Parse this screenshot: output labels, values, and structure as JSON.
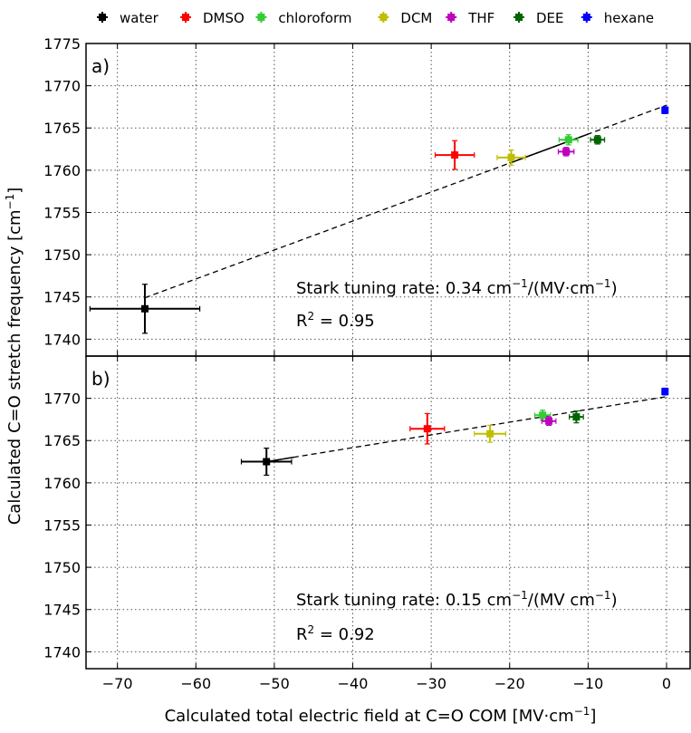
{
  "chart_data": {
    "type": "scatter",
    "legend": {
      "placement": "top",
      "entries": [
        {
          "name": "water",
          "color": "#000000"
        },
        {
          "name": "DMSO",
          "color": "#ff0000"
        },
        {
          "name": "chloroform",
          "color": "#33cc33"
        },
        {
          "name": "DCM",
          "color": "#bfbf00"
        },
        {
          "name": "THF",
          "color": "#bf00bf"
        },
        {
          "name": "DEE",
          "color": "#006400"
        },
        {
          "name": "hexane",
          "color": "#0000ff"
        }
      ]
    },
    "xlabel": "Calculated total electric field at C=O COM [MV·cm",
    "xlabel_sup": "−1",
    "xlabel_end": "]",
    "ylabel": "Calculated C=O stretch frequency [cm",
    "ylabel_sup": "−1",
    "ylabel_end": "]",
    "xlim": [
      -74,
      3
    ],
    "xticks": [
      -70,
      -60,
      -50,
      -40,
      -30,
      -20,
      -10,
      0
    ],
    "xtick_labels": [
      "−70",
      "−60",
      "−50",
      "−40",
      "−30",
      "−20",
      "−10",
      "0"
    ],
    "grid": true,
    "panels": [
      {
        "label": "a)",
        "ylim": [
          1738,
          1775
        ],
        "yticks": [
          1740,
          1745,
          1750,
          1755,
          1760,
          1765,
          1770,
          1775
        ],
        "ytick_labels": [
          "1740",
          "1745",
          "1750",
          "1755",
          "1760",
          "1765",
          "1770",
          "1775"
        ],
        "points": [
          {
            "series": "water",
            "x": -66.5,
            "y": 1743.6,
            "xerr": 7.0,
            "yerr": 2.9
          },
          {
            "series": "DMSO",
            "x": -27.0,
            "y": 1761.8,
            "xerr": 2.5,
            "yerr": 1.7
          },
          {
            "series": "chloroform",
            "x": -12.5,
            "y": 1763.6,
            "xerr": 1.2,
            "yerr": 0.6
          },
          {
            "series": "DCM",
            "x": -19.8,
            "y": 1761.5,
            "xerr": 1.8,
            "yerr": 0.9
          },
          {
            "series": "THF",
            "x": -12.8,
            "y": 1762.2,
            "xerr": 1.0,
            "yerr": 0.5
          },
          {
            "series": "DEE",
            "x": -8.8,
            "y": 1763.6,
            "xerr": 0.9,
            "yerr": 0.5
          },
          {
            "series": "hexane",
            "x": -0.2,
            "y": 1767.1,
            "xerr": 0.3,
            "yerr": 0.4
          }
        ],
        "fit": {
          "x0": -66.5,
          "y0": 1744.9,
          "x1": 0.0,
          "y1": 1767.7,
          "solid_from_x": -20.0,
          "solid_to_x": -10.0
        },
        "annotation_line1": "Stark tuning rate: 0.34 cm",
        "annotation_sup1": "−1",
        "annotation_mid": "/(MV·cm",
        "annotation_sup2": "−1",
        "annotation_end": ")",
        "r2_label": "R",
        "r2_sup": "2",
        "r2_value": " = 0.95"
      },
      {
        "label": "b)",
        "ylim": [
          1738,
          1775
        ],
        "yticks": [
          1740,
          1745,
          1750,
          1755,
          1760,
          1765,
          1770
        ],
        "ytick_labels": [
          "1740",
          "1745",
          "1750",
          "1755",
          "1760",
          "1765",
          "1770"
        ],
        "points": [
          {
            "series": "water",
            "x": -51.0,
            "y": 1762.5,
            "xerr": 3.2,
            "yerr": 1.6
          },
          {
            "series": "DMSO",
            "x": -30.5,
            "y": 1766.4,
            "xerr": 2.2,
            "yerr": 1.8
          },
          {
            "series": "chloroform",
            "x": -15.8,
            "y": 1768.0,
            "xerr": 1.0,
            "yerr": 0.6
          },
          {
            "series": "DCM",
            "x": -22.5,
            "y": 1765.8,
            "xerr": 2.0,
            "yerr": 1.0
          },
          {
            "series": "THF",
            "x": -15.0,
            "y": 1767.3,
            "xerr": 0.9,
            "yerr": 0.5
          },
          {
            "series": "DEE",
            "x": -11.5,
            "y": 1767.8,
            "xerr": 0.9,
            "yerr": 0.7
          },
          {
            "series": "hexane",
            "x": -0.2,
            "y": 1770.8,
            "xerr": 0.3,
            "yerr": 0.4
          }
        ],
        "fit": {
          "x0": -51.0,
          "y0": 1762.5,
          "x1": 0.0,
          "y1": 1770.2,
          "solid_from_x": -51.0,
          "solid_to_x": -47.5
        },
        "annotation_line1": "Stark tuning rate: 0.15 cm",
        "annotation_sup1": "−1",
        "annotation_mid": "/(MV cm",
        "annotation_sup2": "−1",
        "annotation_end": ")",
        "r2_label": "R",
        "r2_sup": "2",
        "r2_value": " = 0.92"
      }
    ]
  }
}
